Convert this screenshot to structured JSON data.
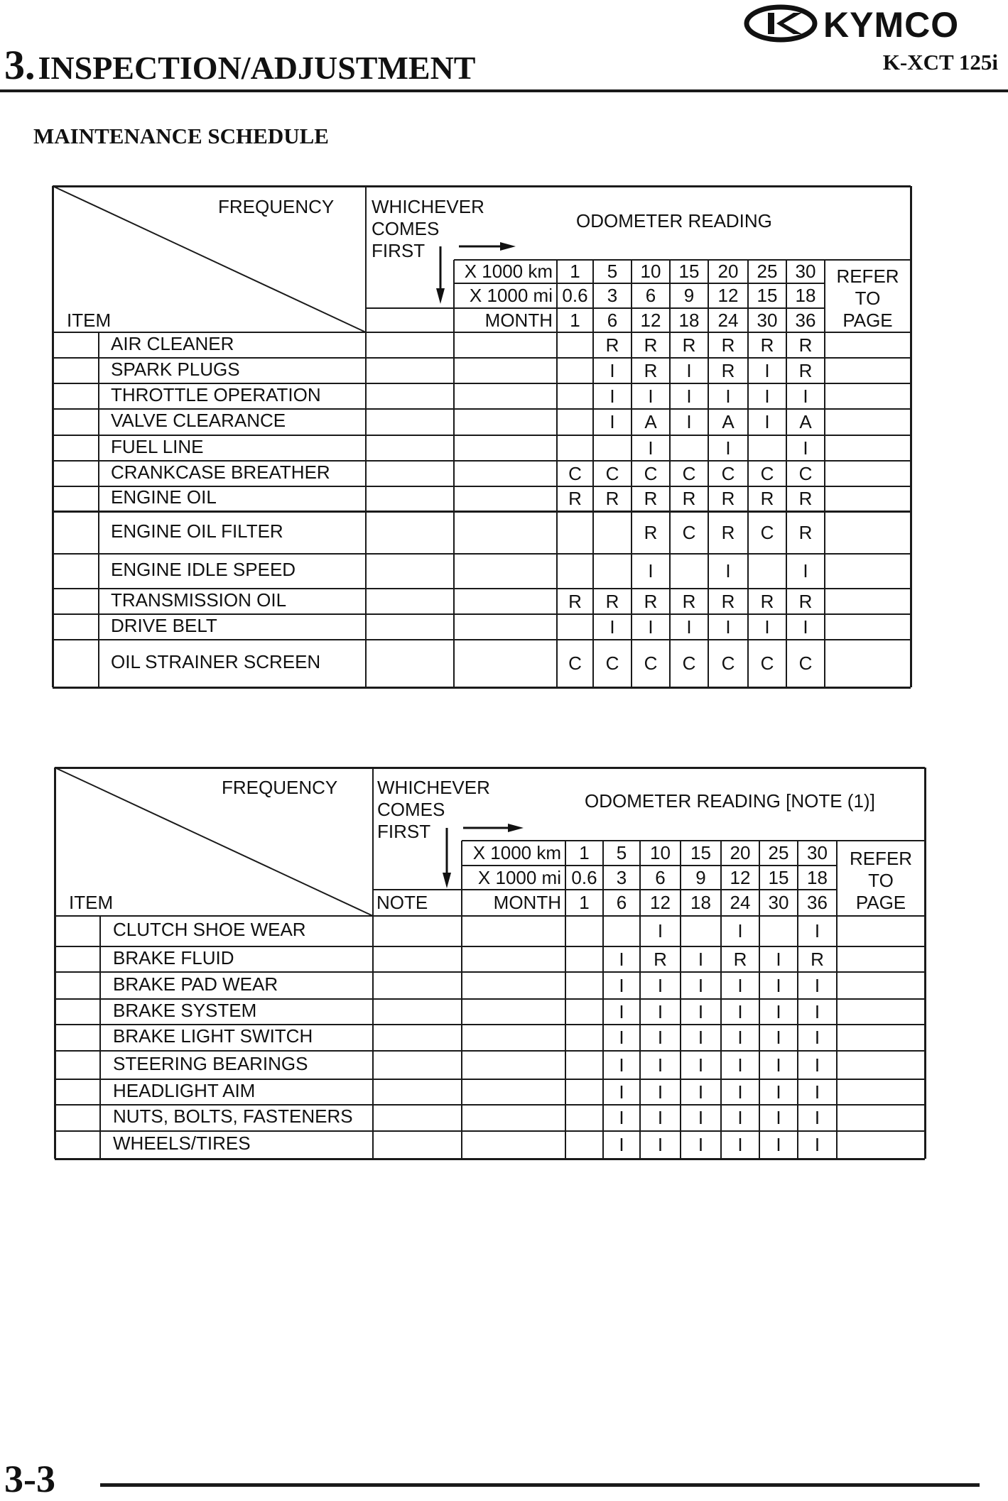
{
  "header": {
    "chapter_number": "3.",
    "chapter_title": "INSPECTION/ADJUSTMENT",
    "brand_logo": "KYMCO",
    "model": "K-XCT 125i"
  },
  "section_title": "MAINTENANCE SCHEDULE",
  "tables": [
    {
      "frequency_label": "FREQUENCY",
      "item_label": "ITEM",
      "whichever": [
        "WHICHEVER",
        "COMES",
        "FIRST"
      ],
      "odometer_title": "ODOMETER READING",
      "note_label": "",
      "row_labels": [
        "X 1000 km",
        "X 1000 mi",
        "MONTH"
      ],
      "km": [
        "1",
        "5",
        "10",
        "15",
        "20",
        "25",
        "30"
      ],
      "mi": [
        "0.6",
        "3",
        "6",
        "9",
        "12",
        "15",
        "18"
      ],
      "month": [
        "1",
        "6",
        "12",
        "18",
        "24",
        "30",
        "36"
      ],
      "refer": [
        "REFER",
        "TO",
        "PAGE"
      ],
      "rows": [
        {
          "item": "AIR CLEANER",
          "values": [
            "",
            "R",
            "R",
            "R",
            "R",
            "R",
            "R"
          ]
        },
        {
          "item": "SPARK PLUGS",
          "values": [
            "",
            "I",
            "R",
            "I",
            "R",
            "I",
            "R"
          ]
        },
        {
          "item": "THROTTLE OPERATION",
          "values": [
            "",
            "I",
            "I",
            "I",
            "I",
            "I",
            "I"
          ]
        },
        {
          "item": "VALVE CLEARANCE",
          "values": [
            "",
            "I",
            "A",
            "I",
            "A",
            "I",
            "A"
          ]
        },
        {
          "item": "FUEL LINE",
          "values": [
            "",
            "",
            "I",
            "",
            "I",
            "",
            "I"
          ]
        },
        {
          "item": "CRANKCASE BREATHER",
          "values": [
            "C",
            "C",
            "C",
            "C",
            "C",
            "C",
            "C"
          ]
        },
        {
          "item": "ENGINE OIL",
          "values": [
            "R",
            "R",
            "R",
            "R",
            "R",
            "R",
            "R"
          ]
        },
        {
          "item": "ENGINE OIL FILTER",
          "values": [
            "",
            "",
            "R",
            "C",
            "R",
            "C",
            "R"
          ]
        },
        {
          "item": "ENGINE IDLE SPEED",
          "values": [
            "",
            "",
            "I",
            "",
            "I",
            "",
            "I"
          ]
        },
        {
          "item": "TRANSMISSION OIL",
          "values": [
            "R",
            "R",
            "R",
            "R",
            "R",
            "R",
            "R"
          ]
        },
        {
          "item": "DRIVE BELT",
          "values": [
            "",
            "I",
            "I",
            "I",
            "I",
            "I",
            "I"
          ]
        },
        {
          "item": "OIL STRAINER SCREEN",
          "values": [
            "C",
            "C",
            "C",
            "C",
            "C",
            "C",
            "C"
          ]
        }
      ]
    },
    {
      "frequency_label": "FREQUENCY",
      "item_label": "ITEM",
      "whichever": [
        "WHICHEVER",
        "COMES",
        "FIRST"
      ],
      "odometer_title": "ODOMETER READING [NOTE (1)]",
      "note_label": "NOTE",
      "row_labels": [
        "X 1000 km",
        "X 1000 mi",
        "MONTH"
      ],
      "km": [
        "1",
        "5",
        "10",
        "15",
        "20",
        "25",
        "30"
      ],
      "mi": [
        "0.6",
        "3",
        "6",
        "9",
        "12",
        "15",
        "18"
      ],
      "month": [
        "1",
        "6",
        "12",
        "18",
        "24",
        "30",
        "36"
      ],
      "refer": [
        "REFER",
        "TO",
        "PAGE"
      ],
      "rows": [
        {
          "item": "CLUTCH SHOE WEAR",
          "values": [
            "",
            "",
            "I",
            "",
            "I",
            "",
            "I"
          ]
        },
        {
          "item": "BRAKE FLUID",
          "values": [
            "",
            "I",
            "R",
            "I",
            "R",
            "I",
            "R"
          ]
        },
        {
          "item": "BRAKE PAD WEAR",
          "values": [
            "",
            "I",
            "I",
            "I",
            "I",
            "I",
            "I"
          ]
        },
        {
          "item": "BRAKE SYSTEM",
          "values": [
            "",
            "I",
            "I",
            "I",
            "I",
            "I",
            "I"
          ]
        },
        {
          "item": "BRAKE LIGHT SWITCH",
          "values": [
            "",
            "I",
            "I",
            "I",
            "I",
            "I",
            "I"
          ]
        },
        {
          "item": "STEERING BEARINGS",
          "values": [
            "",
            "I",
            "I",
            "I",
            "I",
            "I",
            "I"
          ]
        },
        {
          "item": "HEADLIGHT AIM",
          "values": [
            "",
            "I",
            "I",
            "I",
            "I",
            "I",
            "I"
          ]
        },
        {
          "item": "NUTS, BOLTS, FASTENERS",
          "values": [
            "",
            "I",
            "I",
            "I",
            "I",
            "I",
            "I"
          ]
        },
        {
          "item": "WHEELS/TIRES",
          "values": [
            "",
            "I",
            "I",
            "I",
            "I",
            "I",
            "I"
          ]
        }
      ]
    }
  ],
  "footer": {
    "page_number": "3-3"
  }
}
